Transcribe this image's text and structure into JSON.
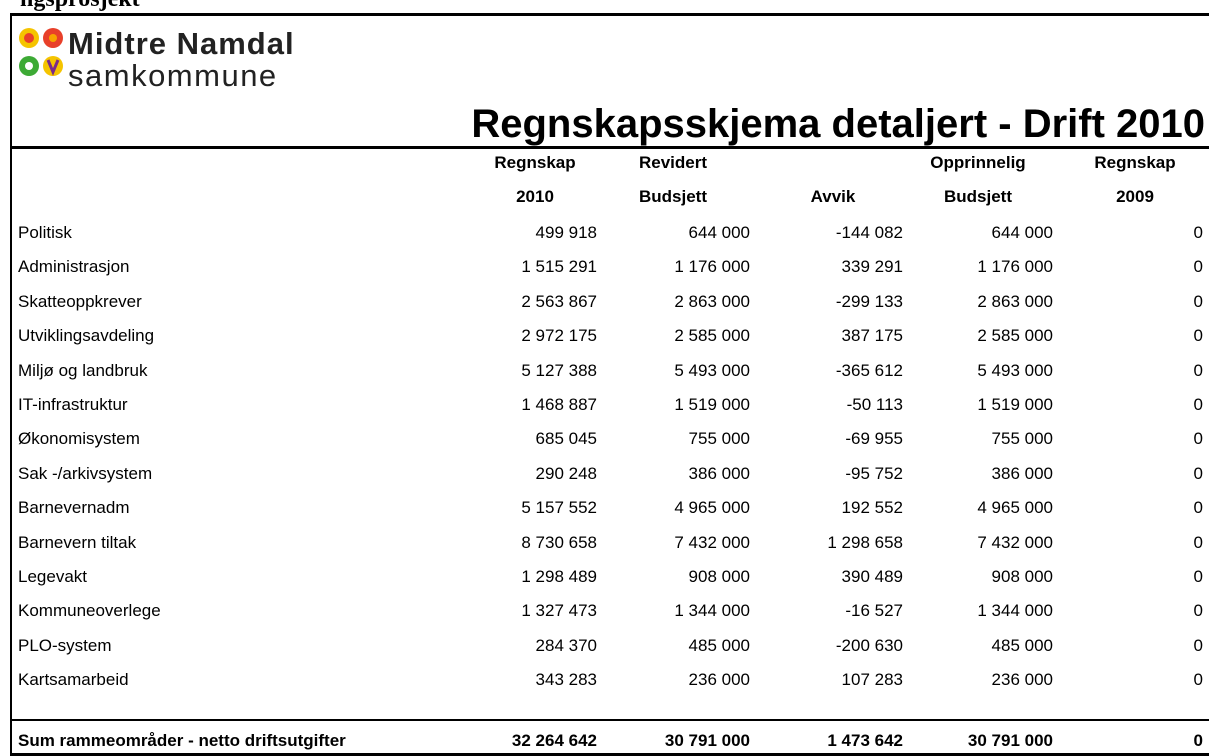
{
  "header": {
    "cut_text": "ngsprosjekt",
    "org_line1": "Midtre Namdal",
    "org_line2": "samkommune",
    "title": "Regnskapsskjema detaljert - Drift 2010"
  },
  "table": {
    "columns": [
      [
        "Regnskap",
        "2010"
      ],
      [
        "Revidert",
        "Budsjett"
      ],
      [
        "",
        "Avvik"
      ],
      [
        "Opprinnelig",
        "Budsjett"
      ],
      [
        "Regnskap",
        "2009"
      ]
    ],
    "rows": [
      [
        "Politisk",
        "499 918",
        "644 000",
        "-144 082",
        "644 000",
        "0"
      ],
      [
        "Administrasjon",
        "1 515 291",
        "1 176 000",
        "339 291",
        "1 176 000",
        "0"
      ],
      [
        "Skatteoppkrever",
        "2 563 867",
        "2 863 000",
        "-299 133",
        "2 863 000",
        "0"
      ],
      [
        "Utviklingsavdeling",
        "2 972 175",
        "2 585 000",
        "387 175",
        "2 585 000",
        "0"
      ],
      [
        "Miljø og landbruk",
        "5 127 388",
        "5 493 000",
        "-365 612",
        "5 493 000",
        "0"
      ],
      [
        "IT-infrastruktur",
        "1 468 887",
        "1 519 000",
        "-50 113",
        "1 519 000",
        "0"
      ],
      [
        "Økonomisystem",
        "685 045",
        "755 000",
        "-69 955",
        "755 000",
        "0"
      ],
      [
        "Sak -/arkivsystem",
        "290 248",
        "386 000",
        "-95 752",
        "386 000",
        "0"
      ],
      [
        "Barnevernadm",
        "5 157 552",
        "4 965 000",
        "192 552",
        "4 965 000",
        "0"
      ],
      [
        "Barnevern tiltak",
        "8 730 658",
        "7 432 000",
        "1 298 658",
        "7 432 000",
        "0"
      ],
      [
        "Legevakt",
        "1 298 489",
        "908 000",
        "390 489",
        "908 000",
        "0"
      ],
      [
        "Kommuneoverlege",
        "1 327 473",
        "1 344 000",
        "-16 527",
        "1 344 000",
        "0"
      ],
      [
        "PLO-system",
        "284 370",
        "485 000",
        "-200 630",
        "485 000",
        "0"
      ],
      [
        "Kartsamarbeid",
        "343 283",
        "236 000",
        "107 283",
        "236 000",
        "0"
      ]
    ],
    "total": [
      "Sum rammeområder - netto driftsutgifter",
      "32 264 642",
      "30 791 000",
      "1 473 642",
      "30 791 000",
      "0"
    ]
  }
}
